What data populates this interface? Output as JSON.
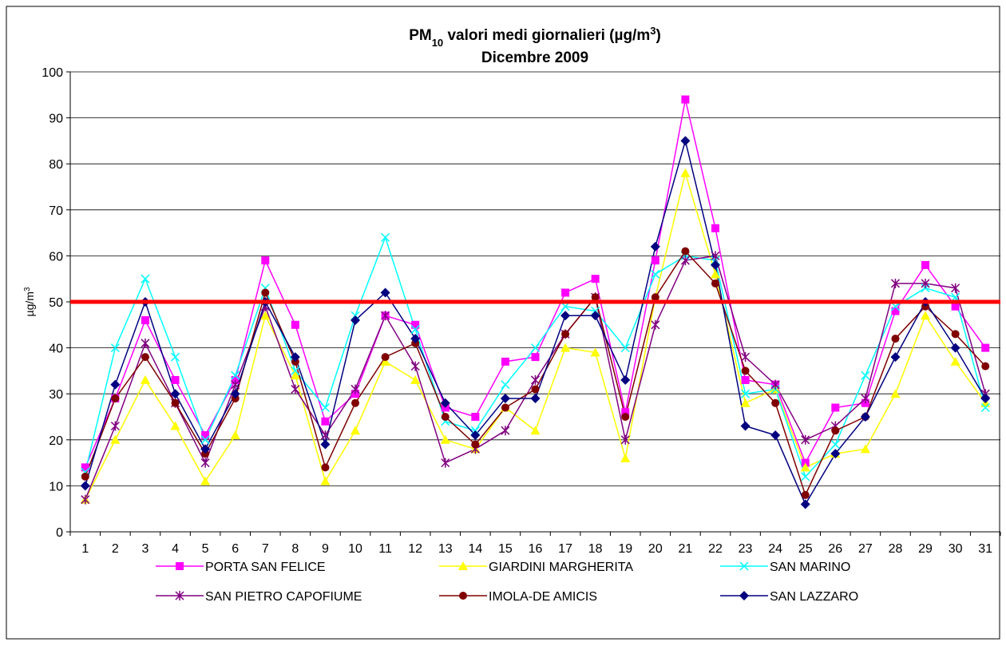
{
  "chart_data": {
    "type": "line",
    "title": [
      "PM",
      "10",
      " valori medi giornalieri (µg/m",
      "3",
      ")"
    ],
    "subtitle": "Dicembre 2009",
    "y_label": [
      "µg/m",
      "3"
    ],
    "categories": [
      "1",
      "2",
      "3",
      "4",
      "5",
      "6",
      "7",
      "8",
      "9",
      "10",
      "11",
      "12",
      "13",
      "14",
      "15",
      "16",
      "17",
      "18",
      "19",
      "20",
      "21",
      "22",
      "23",
      "24",
      "25",
      "26",
      "27",
      "28",
      "29",
      "30",
      "31"
    ],
    "ylim": [
      0,
      100
    ],
    "yticks": [
      0,
      10,
      20,
      30,
      40,
      50,
      60,
      70,
      80,
      90,
      100
    ],
    "grid": true,
    "threshold": 50,
    "threshold_color": "#ff0000",
    "series": [
      {
        "name": "PORTA SAN FELICE",
        "color": "#ff00ff",
        "marker": "square",
        "values": [
          14,
          29,
          46,
          33,
          21,
          33,
          59,
          45,
          24,
          30,
          47,
          45,
          27,
          25,
          37,
          38,
          52,
          55,
          26,
          59,
          94,
          66,
          33,
          32,
          15,
          27,
          28,
          48,
          58,
          49,
          40
        ]
      },
      {
        "name": "GIARDINI MARGHERITA",
        "color": "#ffff00",
        "marker": "triangle",
        "values": [
          7,
          20,
          33,
          23,
          11,
          21,
          47,
          34,
          11,
          22,
          37,
          33,
          20,
          18,
          27,
          22,
          40,
          39,
          16,
          51,
          78,
          56,
          28,
          31,
          14,
          17,
          18,
          30,
          47,
          37,
          28
        ]
      },
      {
        "name": "SAN MARINO",
        "color": "#00ffff",
        "marker": "x",
        "values": [
          13,
          40,
          55,
          38,
          20,
          34,
          53,
          35,
          27,
          47,
          64,
          44,
          24,
          22,
          32,
          40,
          49,
          48,
          40,
          56,
          60,
          59,
          30,
          31,
          12,
          19,
          34,
          49,
          53,
          51,
          27
        ]
      },
      {
        "name": "SAN PIETRO CAPOFIUME",
        "color": "#800080",
        "marker": "star",
        "values": [
          7,
          23,
          41,
          28,
          15,
          32,
          49,
          31,
          21,
          31,
          47,
          36,
          15,
          18,
          22,
          33,
          43,
          51,
          20,
          45,
          59,
          60,
          38,
          32,
          20,
          23,
          29,
          54,
          54,
          53,
          30
        ]
      },
      {
        "name": "IMOLA-DE AMICIS",
        "color": "#800000",
        "marker": "circle",
        "values": [
          12,
          29,
          38,
          28,
          17,
          29,
          52,
          37,
          14,
          28,
          38,
          41,
          25,
          19,
          27,
          31,
          43,
          51,
          25,
          51,
          61,
          54,
          35,
          28,
          8,
          22,
          25,
          42,
          49,
          43,
          36
        ]
      },
      {
        "name": "SAN LAZZARO",
        "color": "#000080",
        "marker": "diamond",
        "values": [
          10,
          32,
          50,
          30,
          18,
          30,
          50,
          38,
          19,
          46,
          52,
          42,
          28,
          21,
          29,
          29,
          47,
          47,
          33,
          62,
          85,
          58,
          23,
          21,
          6,
          17,
          25,
          38,
          50,
          40,
          29
        ]
      }
    ]
  }
}
